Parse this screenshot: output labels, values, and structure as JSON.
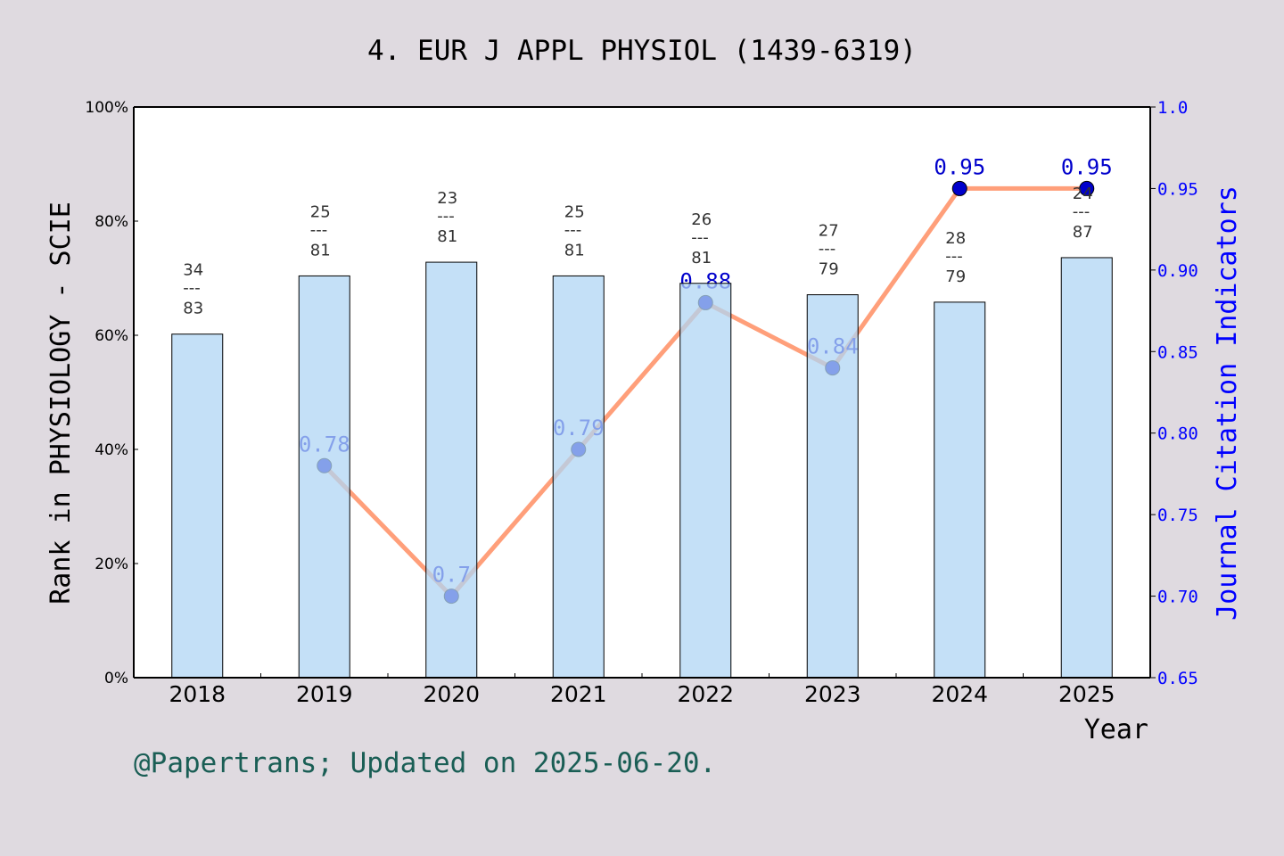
{
  "chart_data": {
    "type": "bar+line",
    "title": "4. EUR J APPL PHYSIOL (1439-6319)",
    "xlabel": "Year",
    "ylabel_left": "Rank in PHYSIOLOGY - SCIE",
    "ylabel_right": "Journal Citation Indicators",
    "categories": [
      "2018",
      "2019",
      "2020",
      "2021",
      "2022",
      "2023",
      "2024",
      "2025"
    ],
    "left_ylim": [
      0,
      100
    ],
    "left_ticks": [
      "0%",
      "20%",
      "40%",
      "60%",
      "80%",
      "100%"
    ],
    "right_ylim": [
      0.65,
      1.0
    ],
    "right_ticks": [
      "0.65",
      "0.70",
      "0.75",
      "0.80",
      "0.85",
      "0.90",
      "0.95",
      "1.0"
    ],
    "bars": {
      "values_percent": [
        60.2,
        70.4,
        72.8,
        70.4,
        69.1,
        67.1,
        65.8,
        73.6
      ],
      "rank": [
        "34",
        "25",
        "23",
        "25",
        "26",
        "27",
        "28",
        "24"
      ],
      "total": [
        "83",
        "81",
        "81",
        "81",
        "81",
        "79",
        "79",
        "87"
      ],
      "color": "#c5e0f7"
    },
    "line": {
      "values": [
        null,
        0.78,
        0.7,
        0.79,
        0.88,
        0.84,
        0.95,
        0.95
      ],
      "labels": [
        "",
        "0.78",
        "0.7",
        "0.79",
        "0.88",
        "0.84",
        "0.95",
        "0.95"
      ],
      "color": "#ff9f7a",
      "marker_color": "#0000cc"
    },
    "grid": false
  },
  "footer": "@Papertrans; Updated on 2025-06-20."
}
